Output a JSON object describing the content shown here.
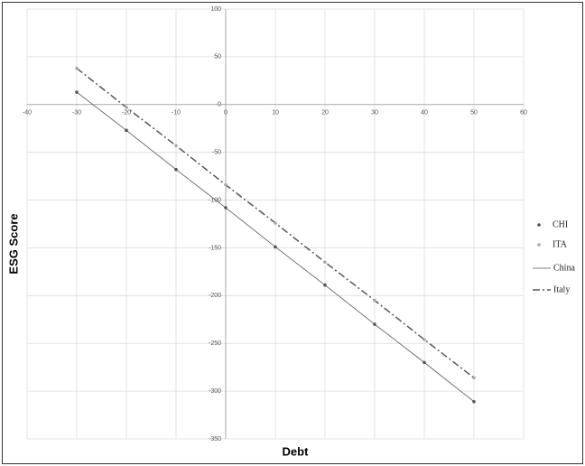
{
  "chart_data": {
    "type": "scatter",
    "xlabel": "Debt",
    "ylabel": "ESG Score",
    "x": [
      -30,
      -20,
      -10,
      0,
      10,
      20,
      30,
      40,
      50
    ],
    "series": [
      {
        "name": "CHI",
        "mark": "point",
        "color": "#555555",
        "values": [
          13,
          -27,
          -68,
          -108,
          -149,
          -189,
          -230,
          -270,
          -311
        ]
      },
      {
        "name": "ITA",
        "mark": "point",
        "color": "#a8a8a8",
        "values": [
          38,
          -3,
          -43,
          -84,
          -124,
          -165,
          -205,
          -246,
          -286
        ]
      },
      {
        "name": "China",
        "mark": "line",
        "color": "#555555",
        "dash": "solid",
        "values": [
          13,
          -27,
          -68,
          -108,
          -149,
          -189,
          -230,
          -270,
          -311
        ]
      },
      {
        "name": "Italy",
        "mark": "line",
        "color": "#555555",
        "dash": "dash-dot",
        "values": [
          38,
          -3,
          -43,
          -84,
          -124,
          -165,
          -205,
          -246,
          -286
        ]
      }
    ],
    "xlim": [
      -40,
      60
    ],
    "xticks": [
      -40,
      -30,
      -20,
      -10,
      0,
      10,
      20,
      30,
      40,
      50,
      60
    ],
    "ylim": [
      -350,
      100
    ],
    "yticks": [
      -350,
      -300,
      -250,
      -200,
      -150,
      -100,
      -50,
      0,
      50,
      100
    ],
    "grid": true,
    "legend": "right"
  }
}
